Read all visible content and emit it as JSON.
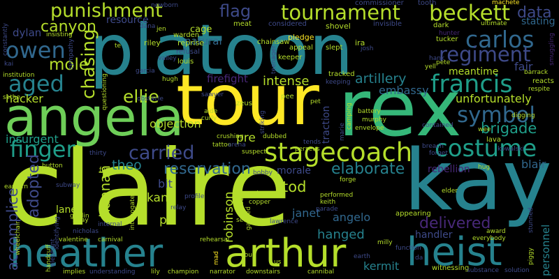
{
  "palette": {
    "yellow": "#fde725",
    "lime": "#b5de2b",
    "green": "#6ece58",
    "sea": "#35b779",
    "teal": "#1f9e89",
    "blue": "#26828e",
    "steel": "#31688e",
    "indigo": "#3e4a89",
    "violet": "#482878",
    "purple": "#440154"
  },
  "words": [
    {
      "text": "claire",
      "color": "#b5de2b"
    },
    {
      "text": "platoon",
      "color": "#26828e"
    },
    {
      "text": "tour",
      "color": "#fde725"
    },
    {
      "text": "rex",
      "color": "#35b779"
    },
    {
      "text": "kay",
      "color": "#26828e"
    },
    {
      "text": "angela",
      "color": "#6ece58"
    },
    {
      "text": "heather",
      "color": "#26828e"
    },
    {
      "text": "arthur",
      "color": "#b5de2b"
    },
    {
      "text": "heist",
      "color": "#26828e"
    },
    {
      "text": "stagecoach",
      "color": "#b5de2b"
    },
    {
      "text": "costume",
      "color": "#1f9e89"
    },
    {
      "text": "tournament",
      "color": "#b5de2b"
    },
    {
      "text": "beckett",
      "color": "#b5de2b"
    },
    {
      "text": "punishment",
      "color": "#b5de2b"
    },
    {
      "text": "carlos",
      "color": "#31688e"
    },
    {
      "text": "regiment",
      "color": "#3e4a89"
    },
    {
      "text": "francis",
      "color": "#1f9e89"
    },
    {
      "text": "symbol",
      "color": "#31688e"
    },
    {
      "text": "owen",
      "color": "#31688e"
    },
    {
      "text": "canyon",
      "color": "#b5de2b"
    },
    {
      "text": "aged",
      "color": "#26828e"
    },
    {
      "text": "finger",
      "color": "#1f9e89"
    },
    {
      "text": "carried",
      "color": "#3e4a89"
    },
    {
      "text": "ellie",
      "color": "#b5de2b"
    },
    {
      "text": "mole",
      "color": "#b5de2b"
    },
    {
      "text": "chasing",
      "color": "#b5de2b"
    },
    {
      "text": "reservation",
      "color": "#31688e"
    },
    {
      "text": "elaborate",
      "color": "#26828e"
    },
    {
      "text": "delivered",
      "color": "#482878"
    },
    {
      "text": "adopted",
      "color": "#3e4a89"
    },
    {
      "text": "accomplice",
      "color": "#3e4a89"
    },
    {
      "text": "hannah",
      "color": "#b5de2b"
    },
    {
      "text": "theo",
      "color": "#26828e"
    },
    {
      "text": "brigade",
      "color": "#1f9e89"
    },
    {
      "text": "data",
      "color": "#3e4a89"
    },
    {
      "text": "flag",
      "color": "#3e4a89"
    },
    {
      "text": "artillery",
      "color": "#26828e"
    },
    {
      "text": "intense",
      "color": "#b5de2b"
    },
    {
      "text": "firefight",
      "color": "#482878"
    },
    {
      "text": "unfortunately",
      "color": "#b5de2b"
    },
    {
      "text": "meantime",
      "color": "#b5de2b"
    },
    {
      "text": "fair",
      "color": "#3e4a89"
    },
    {
      "text": "embassy",
      "color": "#31688e"
    },
    {
      "text": "hacker",
      "color": "#b5de2b"
    },
    {
      "text": "insurgent",
      "color": "#1f9e89"
    },
    {
      "text": "dylan",
      "color": "#3e4a89"
    },
    {
      "text": "natural",
      "color": "#31688e"
    },
    {
      "text": "resource",
      "color": "#3e4a89"
    },
    {
      "text": "cage",
      "color": "#b5de2b"
    },
    {
      "text": "stating",
      "color": "#31688e"
    },
    {
      "text": "objection",
      "color": "#b5de2b"
    },
    {
      "text": "pre",
      "color": "#b5de2b"
    },
    {
      "text": "tod",
      "color": "#b5de2b"
    },
    {
      "text": "morale",
      "color": "#3e4a89"
    },
    {
      "text": "kane",
      "color": "#b5de2b"
    },
    {
      "text": "pill",
      "color": "#b5de2b"
    },
    {
      "text": "bit",
      "color": "#3e4a89"
    },
    {
      "text": "robinson",
      "color": "#b5de2b"
    },
    {
      "text": "janet",
      "color": "#31688e"
    },
    {
      "text": "angelo",
      "color": "#31688e"
    },
    {
      "text": "hanged",
      "color": "#26828e"
    },
    {
      "text": "kermit",
      "color": "#26828e"
    },
    {
      "text": "handler",
      "color": "#3e4a89"
    },
    {
      "text": "personnel",
      "color": "#26828e"
    },
    {
      "text": "blair",
      "color": "#31688e"
    },
    {
      "text": "rebellion",
      "color": "#482878"
    },
    {
      "text": "lane",
      "color": "#b5de2b"
    },
    {
      "text": "traction",
      "color": "#3e4a89"
    },
    {
      "text": "pledge",
      "color": "#fde725"
    },
    {
      "text": "commissioner",
      "color": "#3e4a89"
    },
    {
      "text": "tooth",
      "color": "#3e4a89"
    },
    {
      "text": "machete",
      "color": "#fde725"
    },
    {
      "text": "shovel",
      "color": "#b5de2b"
    },
    {
      "text": "invisible",
      "color": "#3e4a89"
    },
    {
      "text": "ultimate",
      "color": "#b5de2b"
    },
    {
      "text": "dark",
      "color": "#b5de2b"
    },
    {
      "text": "hunter",
      "color": "#482878"
    },
    {
      "text": "tucker",
      "color": "#b5de2b"
    },
    {
      "text": "considered",
      "color": "#3e4a89"
    },
    {
      "text": "meat",
      "color": "#b5de2b"
    },
    {
      "text": "newborn",
      "color": "#3e4a89"
    },
    {
      "text": "warden",
      "color": "#b5de2b"
    },
    {
      "text": "riley",
      "color": "#b5de2b"
    },
    {
      "text": "reprise",
      "color": "#b5de2b"
    },
    {
      "text": "refusal",
      "color": "#3e4a89"
    },
    {
      "text": "louis",
      "color": "#b5de2b"
    },
    {
      "text": "chainsaw",
      "color": "#b5de2b"
    },
    {
      "text": "teenager",
      "color": "#3e4a89"
    },
    {
      "text": "appeal",
      "color": "#b5de2b"
    },
    {
      "text": "slept",
      "color": "#b5de2b"
    },
    {
      "text": "ira",
      "color": "#b5de2b"
    },
    {
      "text": "josh",
      "color": "#3e4a89"
    },
    {
      "text": "keeper",
      "color": "#b5de2b"
    },
    {
      "text": "yell",
      "color": "#b5de2b"
    },
    {
      "text": "pete",
      "color": "#b5de2b"
    },
    {
      "text": "hank",
      "color": "#3e4a89"
    },
    {
      "text": "barrack",
      "color": "#b5de2b"
    },
    {
      "text": "reacts",
      "color": "#b5de2b"
    },
    {
      "text": "respite",
      "color": "#b5de2b"
    },
    {
      "text": "smuggling",
      "color": "#482878"
    },
    {
      "text": "tracked",
      "color": "#b5de2b"
    },
    {
      "text": "keeping",
      "color": "#3e4a89"
    },
    {
      "text": "pee",
      "color": "#b5de2b"
    },
    {
      "text": "zeus",
      "color": "#b5de2b"
    },
    {
      "text": "sawyer",
      "color": "#3e4a89"
    },
    {
      "text": "hugh",
      "color": "#b5de2b"
    },
    {
      "text": "obstacle",
      "color": "#3e4a89"
    },
    {
      "text": "aide",
      "color": "#b5de2b"
    },
    {
      "text": "curly",
      "color": "#b5de2b"
    },
    {
      "text": "battery",
      "color": "#b5de2b"
    },
    {
      "text": "murphy",
      "color": "#b5de2b"
    },
    {
      "text": "envelope",
      "color": "#b5de2b"
    },
    {
      "text": "contained",
      "color": "#3e4a89"
    },
    {
      "text": "digging",
      "color": "#b5de2b"
    },
    {
      "text": "wee",
      "color": "#b5de2b"
    },
    {
      "text": "lava",
      "color": "#b5de2b"
    },
    {
      "text": "kowalski",
      "color": "#3e4a89"
    },
    {
      "text": "breach",
      "color": "#3e4a89"
    },
    {
      "text": "forget",
      "color": "#3e4a89"
    },
    {
      "text": "hug",
      "color": "#b5de2b"
    },
    {
      "text": "crushing",
      "color": "#b5de2b"
    },
    {
      "text": "tattoo",
      "color": "#b5de2b"
    },
    {
      "text": "dubbed",
      "color": "#b5de2b"
    },
    {
      "text": "camping",
      "color": "#b5de2b"
    },
    {
      "text": "marie",
      "color": "#3e4a89"
    },
    {
      "text": "tends",
      "color": "#3e4a89"
    },
    {
      "text": "perseus",
      "color": "#b5de2b"
    },
    {
      "text": "arena",
      "color": "#3e4a89"
    },
    {
      "text": "suspect",
      "color": "#b5de2b"
    },
    {
      "text": "bobby",
      "color": "#3e4a89"
    },
    {
      "text": "forge",
      "color": "#b5de2b"
    },
    {
      "text": "elder",
      "color": "#b5de2b"
    },
    {
      "text": "poisoned",
      "color": "#b5de2b"
    },
    {
      "text": "copper",
      "color": "#b5de2b"
    },
    {
      "text": "performed",
      "color": "#b5de2b"
    },
    {
      "text": "keith",
      "color": "#b5de2b"
    },
    {
      "text": "parade",
      "color": "#3e4a89"
    },
    {
      "text": "secret",
      "color": "#b5de2b"
    },
    {
      "text": "lawrence",
      "color": "#3e4a89"
    },
    {
      "text": "appearing",
      "color": "#b5de2b"
    },
    {
      "text": "award",
      "color": "#b5de2b"
    },
    {
      "text": "everybody",
      "color": "#b5de2b"
    },
    {
      "text": "stunned",
      "color": "#3e4a89"
    },
    {
      "text": "piggy",
      "color": "#b5de2b"
    },
    {
      "text": "milly",
      "color": "#b5de2b"
    },
    {
      "text": "function",
      "color": "#3e4a89"
    },
    {
      "text": "earth",
      "color": "#3e4a89"
    },
    {
      "text": "da",
      "color": "#3e4a89"
    },
    {
      "text": "witnessing",
      "color": "#b5de2b"
    },
    {
      "text": "substance",
      "color": "#3e4a89"
    },
    {
      "text": "solution",
      "color": "#3e4a89"
    },
    {
      "text": "cannibal",
      "color": "#b5de2b"
    },
    {
      "text": "us",
      "color": "#b5de2b"
    },
    {
      "text": "doug",
      "color": "#b5de2b"
    },
    {
      "text": "downstairs",
      "color": "#b5de2b"
    },
    {
      "text": "mad",
      "color": "#fde725"
    },
    {
      "text": "narrator",
      "color": "#b5de2b"
    },
    {
      "text": "champion",
      "color": "#b5de2b"
    },
    {
      "text": "lily",
      "color": "#b5de2b"
    },
    {
      "text": "understanding",
      "color": "#3e4a89"
    },
    {
      "text": "implies",
      "color": "#b5de2b"
    },
    {
      "text": "rehearsal",
      "color": "#b5de2b"
    },
    {
      "text": "carnival",
      "color": "#b5de2b"
    },
    {
      "text": "internal",
      "color": "#3e4a89"
    },
    {
      "text": "relay",
      "color": "#3e4a89"
    },
    {
      "text": "profile",
      "color": "#3e4a89"
    },
    {
      "text": "tibbs",
      "color": "#b5de2b"
    },
    {
      "text": "gagged",
      "color": "#b5de2b"
    },
    {
      "text": "interrogated",
      "color": "#b5de2b"
    },
    {
      "text": "nicholas",
      "color": "#3e4a89"
    },
    {
      "text": "stray",
      "color": "#b5de2b"
    },
    {
      "text": "goblin",
      "color": "#b5de2b"
    },
    {
      "text": "valentine",
      "color": "#b5de2b"
    },
    {
      "text": "handcuff",
      "color": "#b5de2b"
    },
    {
      "text": "elephant",
      "color": "#3e4a89"
    },
    {
      "text": "identifying",
      "color": "#3e4a89"
    },
    {
      "text": "wheelchair",
      "color": "#b5de2b"
    },
    {
      "text": "subway",
      "color": "#3e4a89"
    },
    {
      "text": "eastern",
      "color": "#b5de2b"
    },
    {
      "text": "button",
      "color": "#b5de2b"
    },
    {
      "text": "fur",
      "color": "#b5de2b"
    },
    {
      "text": "thirty",
      "color": "#3e4a89"
    },
    {
      "text": "garcia",
      "color": "#3e4a89"
    },
    {
      "text": "sethe",
      "color": "#b5de2b"
    },
    {
      "text": "kai",
      "color": "#3e4a89"
    },
    {
      "text": "institution",
      "color": "#b5de2b"
    },
    {
      "text": "questioning",
      "color": "#b5de2b"
    },
    {
      "text": "sympathy",
      "color": "#3e4a89"
    },
    {
      "text": "insisting",
      "color": "#b5de2b"
    },
    {
      "text": "constantly",
      "color": "#3e4a89"
    },
    {
      "text": "te",
      "color": "#b5de2b"
    },
    {
      "text": "jen",
      "color": "#b5de2b"
    },
    {
      "text": "dana",
      "color": "#3e4a89"
    },
    {
      "text": "valley",
      "color": "#3e4a89"
    },
    {
      "text": "striking",
      "color": "#3e4a89"
    },
    {
      "text": "pet",
      "color": "#b5de2b"
    }
  ]
}
